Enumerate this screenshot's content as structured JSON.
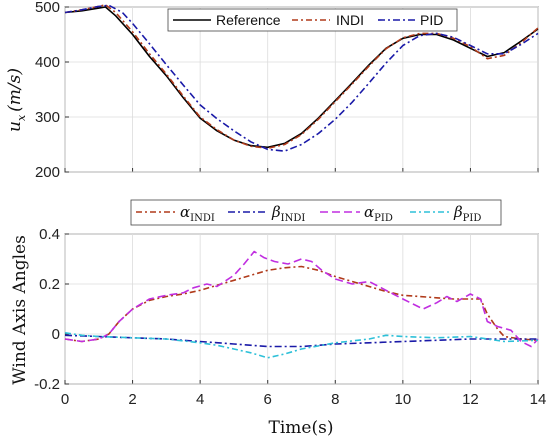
{
  "chart_data": [
    {
      "type": "line",
      "xlim": [
        0,
        14
      ],
      "ylim": [
        200,
        500
      ],
      "xticks": [
        0,
        2,
        4,
        6,
        8,
        10,
        12,
        14
      ],
      "yticks": [
        200,
        300,
        400,
        500
      ],
      "ylabel": "u_x (m/s)",
      "ylabel_parts": {
        "var": "u",
        "sub": "x",
        "unit": "(m/s)"
      },
      "grid": true,
      "legend": "top",
      "series": [
        {
          "name": "Reference",
          "color": "#000000",
          "dash": "",
          "x": [
            0,
            0.5,
            1,
            1.2,
            1.5,
            2,
            2.5,
            3,
            3.5,
            4,
            4.5,
            5,
            5.5,
            6,
            6.5,
            7,
            7.5,
            8,
            8.5,
            9,
            9.5,
            10,
            10.5,
            11,
            11.5,
            12,
            12.5,
            13,
            13.5,
            14
          ],
          "y": [
            490,
            493,
            498,
            500,
            484,
            450,
            410,
            375,
            335,
            298,
            275,
            258,
            248,
            245,
            252,
            270,
            298,
            330,
            362,
            395,
            425,
            443,
            450,
            450,
            440,
            425,
            410,
            417,
            438,
            460
          ]
        },
        {
          "name": "INDI",
          "color": "#b03a1a",
          "dash": "6,3,2,3",
          "x": [
            0,
            0.5,
            1,
            1.2,
            1.5,
            2,
            2.5,
            3,
            3.5,
            4,
            4.5,
            5,
            5.5,
            6,
            6.5,
            7,
            7.5,
            8,
            8.5,
            9,
            9.5,
            10,
            10.5,
            11,
            11.5,
            12,
            12.5,
            13,
            13.5,
            14
          ],
          "y": [
            490,
            495,
            501,
            504,
            490,
            455,
            415,
            378,
            338,
            300,
            277,
            258,
            247,
            243,
            250,
            268,
            296,
            328,
            360,
            393,
            424,
            444,
            452,
            452,
            443,
            428,
            406,
            412,
            435,
            462
          ]
        },
        {
          "name": "PID",
          "color": "#1a1aa8",
          "dash": "7,3,2,3",
          "x": [
            0,
            0.5,
            1,
            1.3,
            1.7,
            2,
            2.5,
            3,
            3.5,
            4,
            4.5,
            5,
            5.5,
            6,
            6.5,
            7,
            7.5,
            8,
            8.5,
            9,
            9.5,
            10,
            10.5,
            11,
            11.5,
            12,
            12.5,
            13,
            13.5,
            14
          ],
          "y": [
            490,
            495,
            501,
            503,
            490,
            470,
            433,
            395,
            358,
            322,
            297,
            275,
            255,
            241,
            238,
            250,
            270,
            296,
            327,
            362,
            398,
            430,
            448,
            452,
            445,
            430,
            415,
            415,
            432,
            452
          ]
        }
      ]
    },
    {
      "type": "line",
      "xlim": [
        0,
        14
      ],
      "ylim": [
        -0.2,
        0.4
      ],
      "xticks": [
        0,
        2,
        4,
        6,
        8,
        10,
        12,
        14
      ],
      "yticks": [
        -0.2,
        0,
        0.2,
        0.4
      ],
      "xlabel": "Time(s)",
      "ylabel": "Wind Axis Angles",
      "grid": true,
      "legend": "top",
      "series": [
        {
          "name": "α_INDI",
          "label_main": "α",
          "label_sub": "INDI",
          "color": "#b03a1a",
          "dash": "6,3,2,3",
          "x": [
            0,
            0.5,
            1,
            1.3,
            1.6,
            2,
            2.5,
            3,
            3.5,
            4,
            4.5,
            5,
            5.5,
            6,
            6.5,
            7,
            7.5,
            8,
            8.5,
            9,
            9.5,
            10,
            10.5,
            11,
            11.5,
            12,
            12.3,
            12.5,
            12.8,
            13,
            13.5,
            14
          ],
          "y": [
            -0.02,
            -0.03,
            -0.02,
            0,
            0.05,
            0.1,
            0.135,
            0.15,
            0.16,
            0.175,
            0.195,
            0.215,
            0.235,
            0.255,
            0.265,
            0.27,
            0.255,
            0.23,
            0.21,
            0.19,
            0.17,
            0.155,
            0.15,
            0.145,
            0.14,
            0.14,
            0.14,
            0.08,
            0.02,
            -0.01,
            -0.02,
            -0.025
          ]
        },
        {
          "name": "β_INDI",
          "label_main": "β",
          "label_sub": "INDI",
          "color": "#1a1aa8",
          "dash": "7,3,2,3",
          "x": [
            0,
            1,
            2,
            3,
            4,
            5,
            6,
            7,
            8,
            9,
            10,
            11,
            12,
            13,
            14
          ],
          "y": [
            -0.005,
            -0.01,
            -0.015,
            -0.02,
            -0.03,
            -0.04,
            -0.05,
            -0.05,
            -0.04,
            -0.035,
            -0.03,
            -0.025,
            -0.02,
            -0.02,
            -0.02
          ]
        },
        {
          "name": "α_PID",
          "label_main": "α",
          "label_sub": "PID",
          "color": "#c02ee0",
          "dash": "8,4",
          "x": [
            0,
            0.5,
            1,
            1.3,
            1.6,
            2,
            2.5,
            3,
            3.5,
            3.8,
            4.2,
            4.5,
            5,
            5.3,
            5.6,
            5.9,
            6.2,
            6.6,
            7,
            7.3,
            7.6,
            8,
            8.5,
            9,
            9.5,
            10,
            10.3,
            10.6,
            11,
            11.3,
            11.6,
            12,
            12.3,
            12.5,
            12.8,
            13.2,
            13.5,
            13.8,
            14
          ],
          "y": [
            -0.02,
            -0.03,
            -0.02,
            0,
            0.05,
            0.1,
            0.14,
            0.155,
            0.165,
            0.185,
            0.2,
            0.19,
            0.235,
            0.28,
            0.33,
            0.305,
            0.29,
            0.28,
            0.3,
            0.29,
            0.255,
            0.22,
            0.2,
            0.21,
            0.175,
            0.14,
            0.12,
            0.1,
            0.125,
            0.15,
            0.13,
            0.16,
            0.14,
            0.05,
            0.03,
            0.015,
            -0.03,
            -0.05,
            -0.02
          ]
        },
        {
          "name": "β_PID",
          "label_main": "β",
          "label_sub": "PID",
          "color": "#2ec0d8",
          "dash": "6,3,2,3",
          "x": [
            0,
            0.5,
            1,
            2,
            3,
            4,
            4.5,
            5,
            5.5,
            6,
            6.5,
            7,
            8,
            9,
            9.5,
            10,
            11,
            12,
            13,
            14
          ],
          "y": [
            0.005,
            -0.005,
            -0.01,
            -0.015,
            -0.02,
            -0.035,
            -0.045,
            -0.06,
            -0.075,
            -0.095,
            -0.08,
            -0.06,
            -0.035,
            -0.02,
            -0.005,
            -0.01,
            -0.015,
            -0.01,
            -0.03,
            -0.025
          ]
        }
      ]
    }
  ]
}
